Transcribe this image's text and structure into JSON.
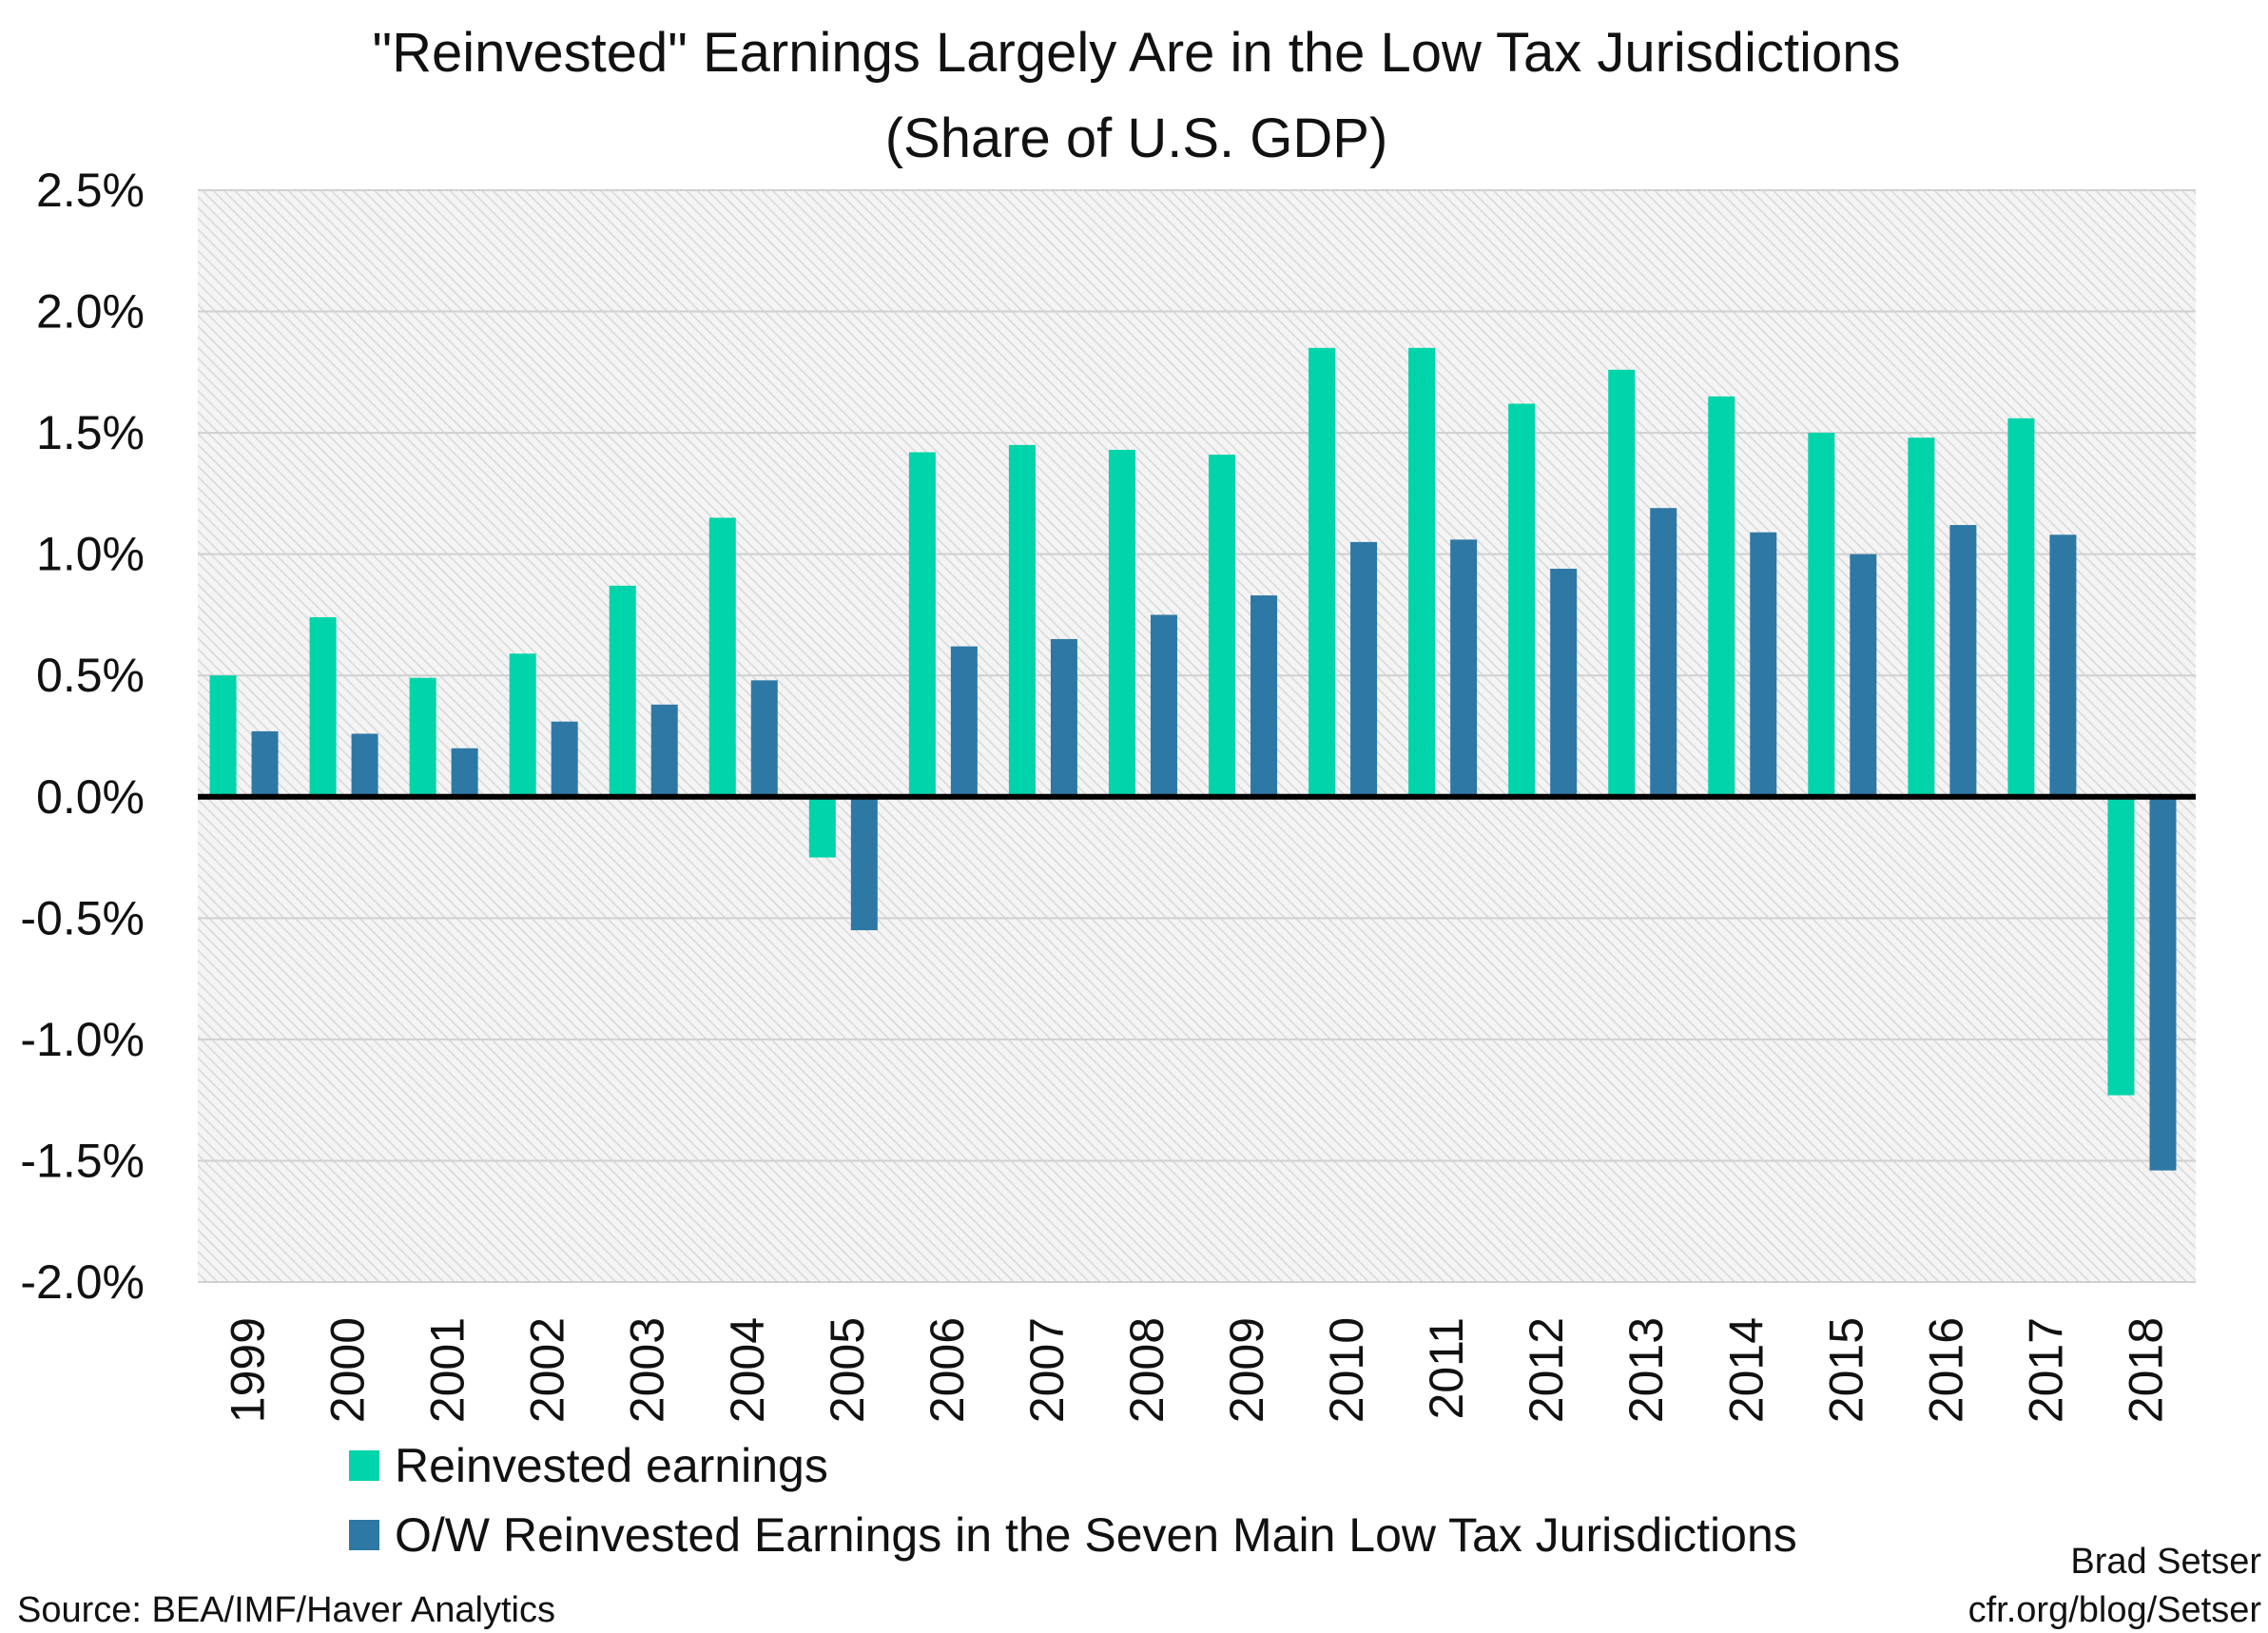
{
  "chart_data": {
    "type": "bar",
    "title": "\"Reinvested\" Earnings Largely Are in the Low Tax Jurisdictions",
    "subtitle": "(Share of U.S. GDP)",
    "xlabel": "",
    "ylabel": "",
    "ylim": [
      -2.0,
      2.5
    ],
    "yticks": [
      "2.5%",
      "2.0%",
      "1.5%",
      "1.0%",
      "0.5%",
      "0.0%",
      "-0.5%",
      "-1.0%",
      "-1.5%",
      "-2.0%"
    ],
    "ytick_values": [
      2.5,
      2.0,
      1.5,
      1.0,
      0.5,
      0.0,
      -0.5,
      -1.0,
      -1.5,
      -2.0
    ],
    "grid": true,
    "legend_position": "bottom",
    "categories": [
      "1999",
      "2000",
      "2001",
      "2002",
      "2003",
      "2004",
      "2005",
      "2006",
      "2007",
      "2008",
      "2009",
      "2010",
      "2011",
      "2012",
      "2013",
      "2014",
      "2015",
      "2016",
      "2017",
      "2018"
    ],
    "series": [
      {
        "name": "Reinvested earnings",
        "color": "#00D4AA",
        "values": [
          0.5,
          0.74,
          0.49,
          0.59,
          0.87,
          1.15,
          -0.25,
          1.42,
          1.45,
          1.43,
          1.41,
          1.85,
          1.85,
          1.62,
          1.76,
          1.65,
          1.5,
          1.48,
          1.56,
          -1.23
        ]
      },
      {
        "name": "O/W Reinvested Earnings in the Seven Main Low Tax Jurisdictions",
        "color": "#2E78A6",
        "values": [
          0.27,
          0.26,
          0.2,
          0.31,
          0.38,
          0.48,
          -0.55,
          0.62,
          0.65,
          0.75,
          0.83,
          1.05,
          1.06,
          0.94,
          1.19,
          1.09,
          1.0,
          1.12,
          1.08,
          -1.54
        ]
      }
    ]
  },
  "footer": {
    "source": "Source: BEA/IMF/Haver Analytics",
    "author": "Brad Setser",
    "url": "cfr.org/blog/Setser"
  }
}
